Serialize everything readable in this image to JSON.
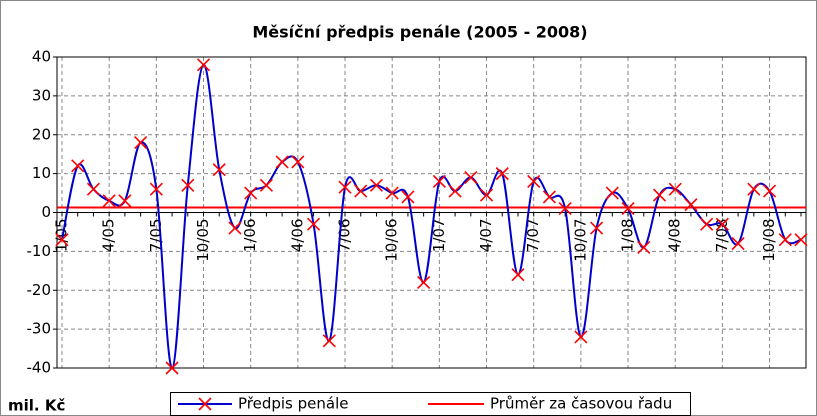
{
  "chart_data": {
    "type": "line",
    "title": "Měsíční předpis penále (2005 - 2008)",
    "y_label": "mil. Kč",
    "categories": [
      "1/05",
      null,
      null,
      "4/05",
      null,
      null,
      "7/05",
      null,
      null,
      "10/05",
      null,
      null,
      "1/06",
      null,
      null,
      "4/06",
      null,
      null,
      "7/06",
      null,
      null,
      "10/06",
      null,
      null,
      "1/07",
      null,
      null,
      "4/07",
      null,
      null,
      "7/07",
      null,
      null,
      "10/07",
      null,
      null,
      "1/08",
      null,
      null,
      "4/08",
      null,
      null,
      "7/08",
      null,
      null,
      "10/08",
      null,
      null
    ],
    "series": [
      {
        "name": "Předpis penále",
        "color": "#0000cc",
        "marker_color": "#ff0000",
        "values": [
          -7,
          12,
          6,
          3,
          3,
          18,
          6,
          -40,
          7,
          38,
          11,
          -4,
          5,
          7,
          13,
          13,
          -3,
          -33,
          6.5,
          5.5,
          7,
          5,
          4,
          -18,
          8,
          5.5,
          9,
          4.5,
          10,
          -16,
          8,
          4,
          1,
          -32,
          -4,
          5,
          1,
          -9,
          4.5,
          6,
          2,
          -3,
          -3,
          -8,
          6,
          5.5,
          -7,
          -7
        ]
      }
    ],
    "reference_line": {
      "name": "Průměr za časovou řadu",
      "color": "#ff0000",
      "value": 1.3
    },
    "ylim": [
      -40,
      40
    ],
    "yticks": [
      -40,
      -30,
      -20,
      -10,
      0,
      10,
      20,
      30,
      40
    ],
    "grid": true
  }
}
